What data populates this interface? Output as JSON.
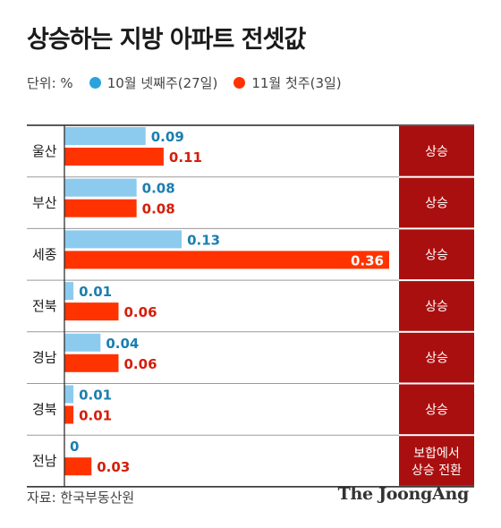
{
  "title": "상승하는 지방 아파트 전셋값",
  "legend": {
    "unit": "단위: %",
    "entries": [
      {
        "label": "10월 넷째주(27일)",
        "color": "#2aa3dd"
      },
      {
        "label": "11월 첫주(3일)",
        "color": "#ff3300"
      }
    ]
  },
  "source": "자료: 한국부동산원",
  "brand": "The JoongAng",
  "colors": {
    "series1_bar": "#8ccbee",
    "series1_text": "#1a7fb0",
    "series2_bar": "#ff3300",
    "series2_text": "#d41e0b",
    "trend_box": "#aa0f0f"
  },
  "chart_data": {
    "type": "bar",
    "orientation": "horizontal",
    "categories": [
      "울산",
      "부산",
      "세종",
      "전북",
      "경남",
      "경북",
      "전남"
    ],
    "series": [
      {
        "name": "10월 넷째주(27일)",
        "values": [
          0.09,
          0.08,
          0.13,
          0.01,
          0.04,
          0.01,
          0
        ]
      },
      {
        "name": "11월 첫주(3일)",
        "values": [
          0.11,
          0.08,
          0.36,
          0.06,
          0.06,
          0.01,
          0.03
        ]
      }
    ],
    "value_labels": [
      [
        "0.09",
        "0.08",
        "0.13",
        "0.01",
        "0.04",
        "0.01",
        "0"
      ],
      [
        "0.11",
        "0.08",
        "0.36",
        "0.06",
        "0.06",
        "0.01",
        "0.03"
      ]
    ],
    "trend": [
      "상승",
      "상승",
      "상승",
      "상승",
      "상승",
      "상승",
      "보합에서\n상승 전환"
    ],
    "xlim": [
      0,
      0.36
    ]
  }
}
